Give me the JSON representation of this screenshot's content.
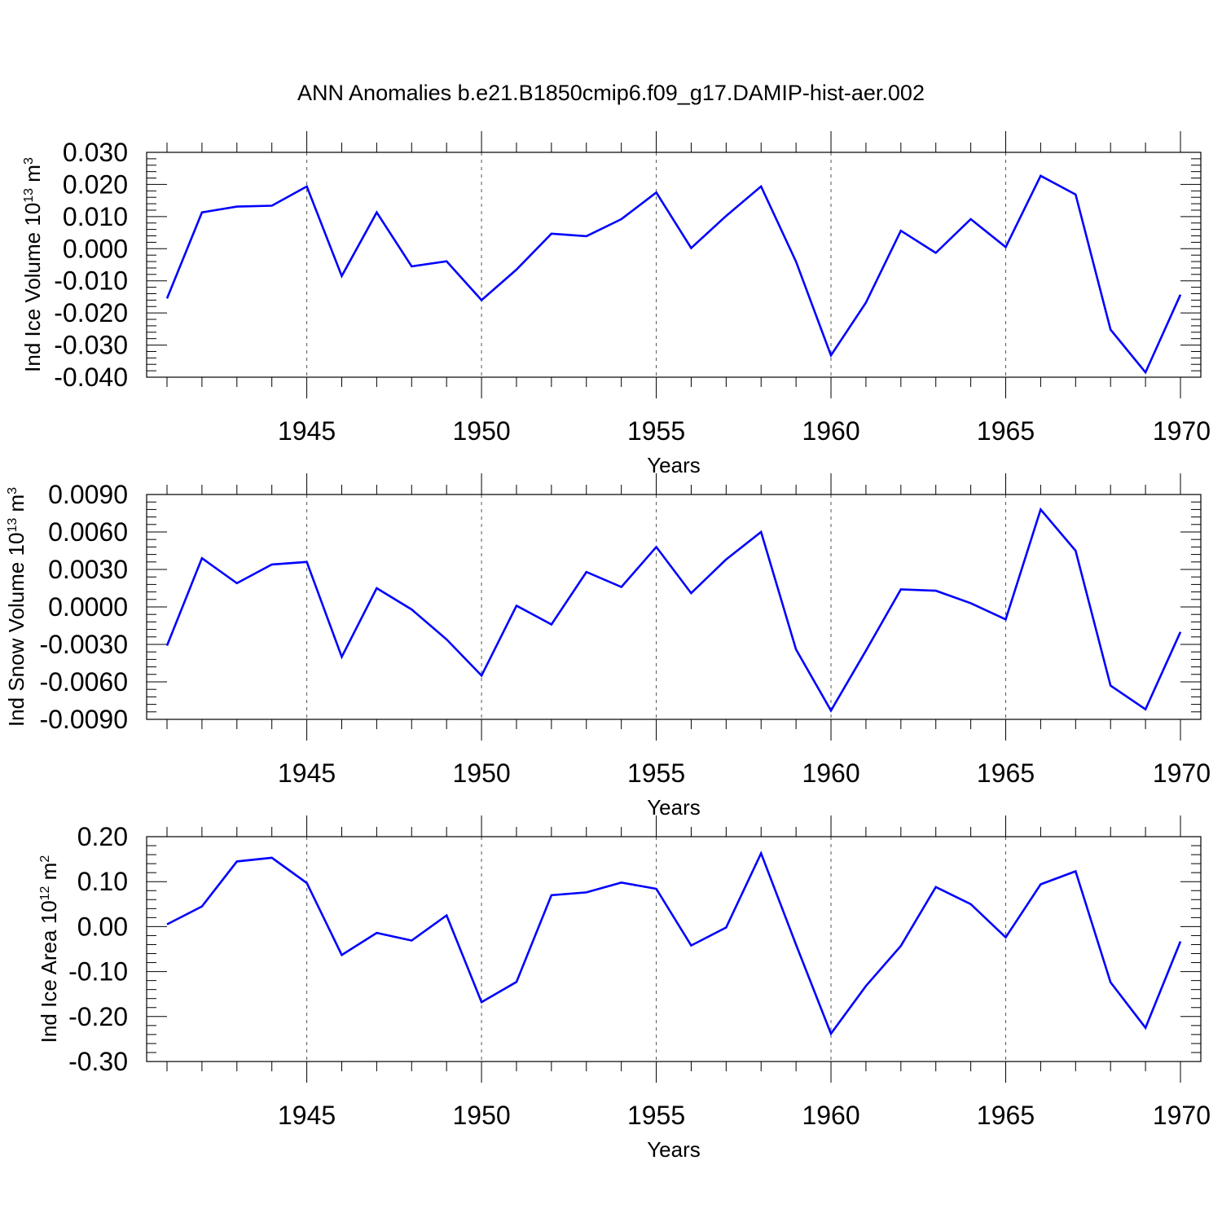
{
  "figure": {
    "title": "ANN Anomalies b.e21.B1850cmip6.f09_g17.DAMIP-hist-aer.002"
  },
  "chart_data": [
    {
      "type": "line",
      "xlabel": "Years",
      "ylabel": {
        "text": "Ind Ice Volume 10",
        "sup": "13",
        "unit": " m",
        "unit_sup": "3"
      },
      "xlim": [
        1941,
        1970
      ],
      "ylim": [
        -0.04,
        0.03
      ],
      "xticks": [
        1945,
        1950,
        1955,
        1960,
        1965,
        1970
      ],
      "xtick_labels": [
        "1945",
        "1950",
        "1955",
        "1960",
        "1965",
        "1970"
      ],
      "yticks": [
        0.03,
        0.02,
        0.01,
        0.0,
        -0.01,
        -0.02,
        -0.03,
        -0.04
      ],
      "ytick_labels": [
        "0.030",
        "0.020",
        "0.010",
        "0.000",
        "-0.010",
        "-0.020",
        "-0.030",
        "-0.040"
      ],
      "grid": "vertical dashed at major x ticks",
      "series": [
        {
          "color": "#0000ff",
          "x": [
            1941,
            1942,
            1943,
            1944,
            1945,
            1946,
            1947,
            1948,
            1949,
            1950,
            1951,
            1952,
            1953,
            1954,
            1955,
            1956,
            1957,
            1958,
            1959,
            1960,
            1961,
            1962,
            1963,
            1964,
            1965,
            1966,
            1967,
            1968,
            1969,
            1970
          ],
          "y": [
            -0.0155,
            0.0113,
            0.0131,
            0.0134,
            0.0194,
            -0.0085,
            0.0113,
            -0.0055,
            -0.0039,
            -0.016,
            -0.0065,
            0.0047,
            0.0039,
            0.0092,
            0.0175,
            0.0002,
            0.0102,
            0.0194,
            -0.004,
            -0.0332,
            -0.0168,
            0.0056,
            -0.0013,
            0.0092,
            0.0005,
            0.0227,
            0.0169,
            -0.0252,
            -0.0385,
            -0.0143
          ]
        }
      ]
    },
    {
      "type": "line",
      "xlabel": "Years",
      "ylabel": {
        "text": "Ind Snow Volume 10",
        "sup": "13",
        "unit": " m",
        "unit_sup": "3"
      },
      "xlim": [
        1941,
        1970
      ],
      "ylim": [
        -0.009,
        0.009
      ],
      "xticks": [
        1945,
        1950,
        1955,
        1960,
        1965,
        1970
      ],
      "xtick_labels": [
        "1945",
        "1950",
        "1955",
        "1960",
        "1965",
        "1970"
      ],
      "yticks": [
        0.009,
        0.006,
        0.003,
        0.0,
        -0.003,
        -0.006,
        -0.009
      ],
      "ytick_labels": [
        "0.0090",
        "0.0060",
        "0.0030",
        "0.0000",
        "-0.0030",
        "-0.0060",
        "-0.0090"
      ],
      "grid": "vertical dashed at major x ticks",
      "series": [
        {
          "color": "#0000ff",
          "x": [
            1941,
            1942,
            1943,
            1944,
            1945,
            1946,
            1947,
            1948,
            1949,
            1950,
            1951,
            1952,
            1953,
            1954,
            1955,
            1956,
            1957,
            1958,
            1959,
            1960,
            1961,
            1962,
            1963,
            1964,
            1965,
            1966,
            1967,
            1968,
            1969,
            1970
          ],
          "y": [
            -0.0031,
            0.0039,
            0.0019,
            0.0034,
            0.0036,
            -0.004,
            0.0015,
            -0.0002,
            -0.0026,
            -0.0055,
            0.0001,
            -0.0014,
            0.0028,
            0.0016,
            0.0048,
            0.0011,
            0.0038,
            0.006,
            -0.0034,
            -0.0083,
            -0.0035,
            0.0014,
            0.0013,
            0.0003,
            -0.001,
            0.0078,
            0.0045,
            -0.0063,
            -0.0082,
            -0.002
          ]
        }
      ]
    },
    {
      "type": "line",
      "xlabel": "Years",
      "ylabel": {
        "text": "Ind Ice Area 10",
        "sup": "12",
        "unit": " m",
        "unit_sup": "2"
      },
      "xlim": [
        1941,
        1970
      ],
      "ylim": [
        -0.3,
        0.2
      ],
      "xticks": [
        1945,
        1950,
        1955,
        1960,
        1965,
        1970
      ],
      "xtick_labels": [
        "1945",
        "1950",
        "1955",
        "1960",
        "1965",
        "1970"
      ],
      "yticks": [
        0.2,
        0.1,
        0.0,
        -0.1,
        -0.2,
        -0.3
      ],
      "ytick_labels": [
        "0.20",
        "0.10",
        "0.00",
        "-0.10",
        "-0.20",
        "-0.30"
      ],
      "grid": "vertical dashed at major x ticks",
      "series": [
        {
          "color": "#0000ff",
          "x": [
            1941,
            1942,
            1943,
            1944,
            1945,
            1946,
            1947,
            1948,
            1949,
            1950,
            1951,
            1952,
            1953,
            1954,
            1955,
            1956,
            1957,
            1958,
            1959,
            1960,
            1961,
            1962,
            1963,
            1964,
            1965,
            1966,
            1967,
            1968,
            1969,
            1970
          ],
          "y": [
            0.005,
            0.045,
            0.145,
            0.153,
            0.097,
            -0.063,
            -0.014,
            -0.031,
            0.025,
            -0.168,
            -0.123,
            0.07,
            0.076,
            0.098,
            0.084,
            -0.042,
            -0.002,
            0.163,
            -0.04,
            -0.238,
            -0.132,
            -0.043,
            0.088,
            0.05,
            -0.024,
            0.094,
            0.123,
            -0.124,
            -0.225,
            -0.033
          ]
        }
      ]
    }
  ]
}
